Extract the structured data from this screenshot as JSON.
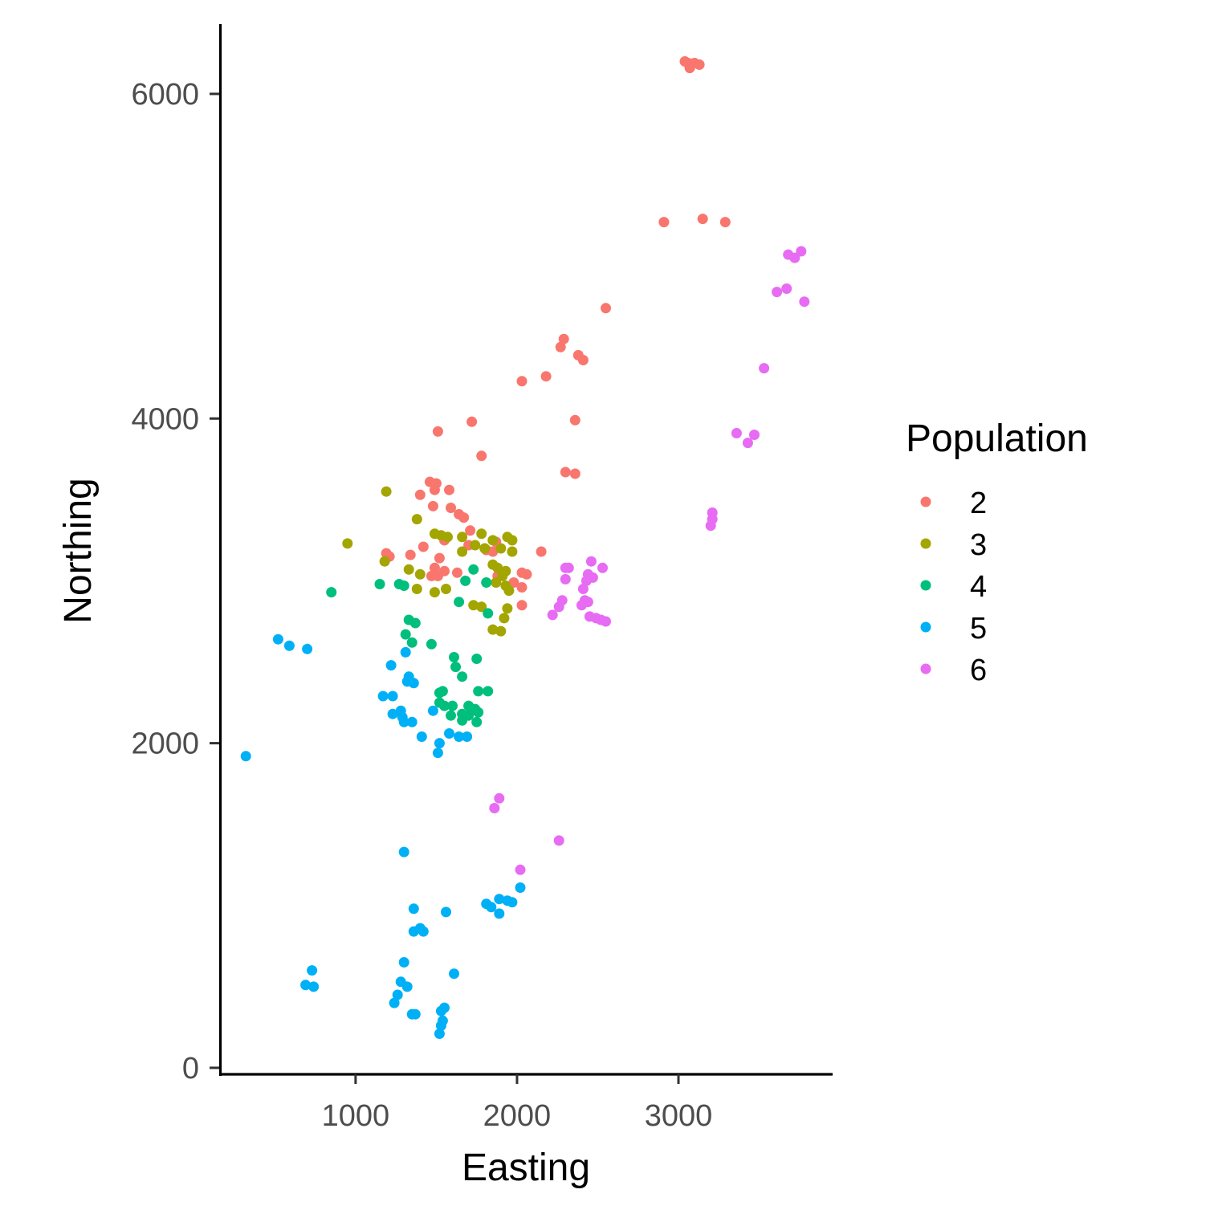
{
  "chart_data": {
    "type": "scatter",
    "title": "",
    "xlabel": "Easting",
    "ylabel": "Northing",
    "xlim": [
      170,
      3950
    ],
    "ylim": [
      -30,
      6430
    ],
    "xticks": [
      1000,
      2000,
      3000
    ],
    "yticks": [
      0,
      2000,
      4000,
      6000
    ],
    "grid": false,
    "legend": {
      "title": "Population",
      "position": "right"
    },
    "series": [
      {
        "name": "2",
        "color": "#F8766D",
        "points": [
          [
            3040,
            6200
          ],
          [
            3060,
            6190
          ],
          [
            3080,
            6180
          ],
          [
            3100,
            6190
          ],
          [
            3130,
            6180
          ],
          [
            3070,
            6160
          ],
          [
            2910,
            5210
          ],
          [
            3150,
            5230
          ],
          [
            3290,
            5210
          ],
          [
            2550,
            4680
          ],
          [
            2290,
            4490
          ],
          [
            2270,
            4440
          ],
          [
            2380,
            4390
          ],
          [
            2410,
            4360
          ],
          [
            2180,
            4260
          ],
          [
            2030,
            4230
          ],
          [
            1720,
            3980
          ],
          [
            2360,
            3990
          ],
          [
            1510,
            3920
          ],
          [
            1780,
            3770
          ],
          [
            2300,
            3670
          ],
          [
            2360,
            3660
          ],
          [
            1460,
            3610
          ],
          [
            1500,
            3600
          ],
          [
            1490,
            3560
          ],
          [
            1580,
            3560
          ],
          [
            1400,
            3530
          ],
          [
            1480,
            3460
          ],
          [
            1590,
            3450
          ],
          [
            1640,
            3410
          ],
          [
            1670,
            3390
          ],
          [
            1710,
            3310
          ],
          [
            1550,
            3250
          ],
          [
            1420,
            3210
          ],
          [
            1700,
            3220
          ],
          [
            1870,
            3240
          ],
          [
            1810,
            3190
          ],
          [
            1190,
            3170
          ],
          [
            1210,
            3150
          ],
          [
            1340,
            3160
          ],
          [
            1520,
            3140
          ],
          [
            1850,
            3180
          ],
          [
            2150,
            3180
          ],
          [
            1490,
            3080
          ],
          [
            1550,
            3060
          ],
          [
            1630,
            3050
          ],
          [
            1470,
            3030
          ],
          [
            1510,
            3030
          ],
          [
            2030,
            3050
          ],
          [
            2060,
            3040
          ],
          [
            1880,
            3030
          ],
          [
            1980,
            2990
          ],
          [
            2030,
            2960
          ],
          [
            2030,
            2850
          ]
        ]
      },
      {
        "name": "3",
        "color": "#A3A500",
        "points": [
          [
            1190,
            3550
          ],
          [
            1380,
            3380
          ],
          [
            950,
            3230
          ],
          [
            1490,
            3290
          ],
          [
            1530,
            3280
          ],
          [
            1570,
            3270
          ],
          [
            1660,
            3270
          ],
          [
            1780,
            3290
          ],
          [
            1850,
            3250
          ],
          [
            1940,
            3270
          ],
          [
            1970,
            3250
          ],
          [
            1740,
            3220
          ],
          [
            1900,
            3200
          ],
          [
            1660,
            3180
          ],
          [
            1800,
            3200
          ],
          [
            1970,
            3180
          ],
          [
            1180,
            3120
          ],
          [
            1850,
            3100
          ],
          [
            1880,
            3080
          ],
          [
            1930,
            3060
          ],
          [
            1330,
            3070
          ],
          [
            1400,
            3040
          ],
          [
            1910,
            3030
          ],
          [
            1870,
            2990
          ],
          [
            1930,
            2970
          ],
          [
            1950,
            2940
          ],
          [
            1380,
            2950
          ],
          [
            1560,
            2950
          ],
          [
            1490,
            2930
          ],
          [
            1730,
            2850
          ],
          [
            1780,
            2840
          ],
          [
            1940,
            2830
          ],
          [
            1920,
            2770
          ],
          [
            1850,
            2700
          ],
          [
            1900,
            2690
          ]
        ]
      },
      {
        "name": "4",
        "color": "#00BF7D",
        "points": [
          [
            1150,
            2980
          ],
          [
            1270,
            2980
          ],
          [
            1300,
            2970
          ],
          [
            1680,
            3000
          ],
          [
            1810,
            2990
          ],
          [
            1730,
            3070
          ],
          [
            1640,
            2870
          ],
          [
            850,
            2930
          ],
          [
            1820,
            2800
          ],
          [
            1330,
            2760
          ],
          [
            1370,
            2740
          ],
          [
            1310,
            2670
          ],
          [
            1350,
            2620
          ],
          [
            1470,
            2610
          ],
          [
            1610,
            2530
          ],
          [
            1750,
            2520
          ],
          [
            1620,
            2470
          ],
          [
            1660,
            2410
          ],
          [
            1760,
            2320
          ],
          [
            1820,
            2320
          ],
          [
            1520,
            2310
          ],
          [
            1540,
            2320
          ],
          [
            1520,
            2250
          ],
          [
            1550,
            2230
          ],
          [
            1600,
            2230
          ],
          [
            1700,
            2230
          ],
          [
            1740,
            2210
          ],
          [
            1760,
            2190
          ],
          [
            1660,
            2180
          ],
          [
            1700,
            2170
          ],
          [
            1590,
            2170
          ],
          [
            1660,
            2140
          ],
          [
            1750,
            2130
          ]
        ]
      },
      {
        "name": "5",
        "color": "#00B0F6",
        "points": [
          [
            520,
            2640
          ],
          [
            590,
            2600
          ],
          [
            700,
            2580
          ],
          [
            1310,
            2560
          ],
          [
            1220,
            2480
          ],
          [
            1330,
            2410
          ],
          [
            1320,
            2380
          ],
          [
            1360,
            2370
          ],
          [
            1170,
            2290
          ],
          [
            1230,
            2290
          ],
          [
            1280,
            2200
          ],
          [
            1230,
            2180
          ],
          [
            1290,
            2160
          ],
          [
            1300,
            2130
          ],
          [
            1350,
            2130
          ],
          [
            1480,
            2200
          ],
          [
            1580,
            2060
          ],
          [
            1640,
            2040
          ],
          [
            1690,
            2040
          ],
          [
            1410,
            2040
          ],
          [
            1520,
            2000
          ],
          [
            1510,
            1940
          ],
          [
            320,
            1920
          ],
          [
            1300,
            1330
          ],
          [
            2020,
            1110
          ],
          [
            1890,
            1040
          ],
          [
            1940,
            1030
          ],
          [
            1970,
            1020
          ],
          [
            1810,
            1010
          ],
          [
            1840,
            990
          ],
          [
            1890,
            950
          ],
          [
            1360,
            980
          ],
          [
            1560,
            960
          ],
          [
            1400,
            860
          ],
          [
            1360,
            840
          ],
          [
            1420,
            840
          ],
          [
            1300,
            650
          ],
          [
            730,
            600
          ],
          [
            1610,
            580
          ],
          [
            690,
            510
          ],
          [
            740,
            500
          ],
          [
            1280,
            530
          ],
          [
            1320,
            500
          ],
          [
            1260,
            450
          ],
          [
            1240,
            400
          ],
          [
            1550,
            370
          ],
          [
            1530,
            350
          ],
          [
            1350,
            330
          ],
          [
            1370,
            330
          ],
          [
            1540,
            290
          ],
          [
            1530,
            260
          ],
          [
            1520,
            210
          ]
        ]
      },
      {
        "name": "6",
        "color": "#E76BF3",
        "points": [
          [
            3760,
            5030
          ],
          [
            3680,
            5010
          ],
          [
            3720,
            4990
          ],
          [
            3670,
            4800
          ],
          [
            3610,
            4780
          ],
          [
            3780,
            4720
          ],
          [
            3530,
            4310
          ],
          [
            3360,
            3910
          ],
          [
            3470,
            3900
          ],
          [
            3430,
            3850
          ],
          [
            3210,
            3420
          ],
          [
            3210,
            3380
          ],
          [
            3200,
            3340
          ],
          [
            2460,
            3120
          ],
          [
            2300,
            3080
          ],
          [
            2320,
            3080
          ],
          [
            2530,
            3080
          ],
          [
            2440,
            3040
          ],
          [
            2470,
            3020
          ],
          [
            2300,
            3010
          ],
          [
            2430,
            3000
          ],
          [
            2410,
            2950
          ],
          [
            2280,
            2880
          ],
          [
            2420,
            2880
          ],
          [
            2440,
            2870
          ],
          [
            2400,
            2850
          ],
          [
            2260,
            2840
          ],
          [
            2220,
            2790
          ],
          [
            2450,
            2780
          ],
          [
            2490,
            2770
          ],
          [
            2520,
            2760
          ],
          [
            2550,
            2750
          ],
          [
            1890,
            1660
          ],
          [
            1860,
            1600
          ],
          [
            2260,
            1400
          ],
          [
            2020,
            1220
          ]
        ]
      }
    ]
  }
}
